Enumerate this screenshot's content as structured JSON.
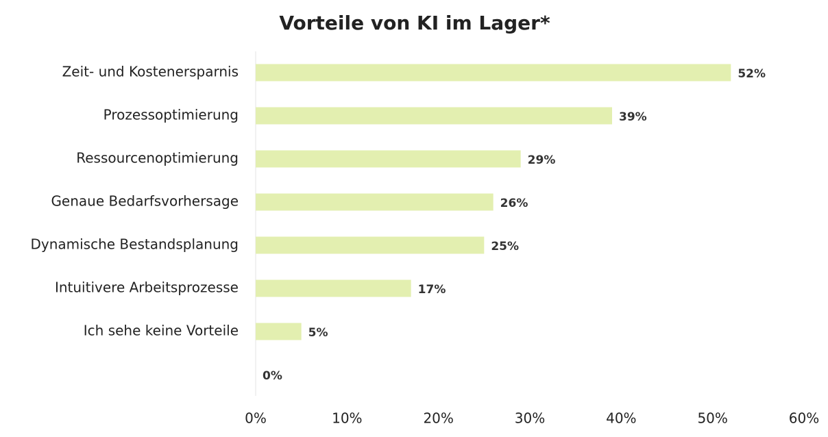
{
  "chart_data": {
    "type": "bar",
    "orientation": "horizontal",
    "title": "Vorteile von KI im Lager*",
    "categories": [
      "Zeit- und Kostenersparnis",
      "Prozessoptimierung",
      "Ressourcenoptimierung",
      "Genaue Bedarfsvorhersage",
      "Dynamische Bestandsplanung",
      "Intuitivere Arbeitsprozesse",
      "Ich sehe keine Vorteile",
      null
    ],
    "values": [
      52,
      39,
      29,
      26,
      25,
      17,
      5,
      0
    ],
    "value_labels": [
      "52%",
      "39%",
      "29%",
      "26%",
      "25%",
      "17%",
      "5%",
      "0%"
    ],
    "color": "#e3efb0",
    "xlim": [
      0,
      60
    ],
    "xticks": [
      {
        "value": 0,
        "label": "0%"
      },
      {
        "value": 10,
        "label": "10%"
      },
      {
        "value": 20,
        "label": "20%"
      },
      {
        "value": 30,
        "label": "30%"
      },
      {
        "value": 40,
        "label": "40%"
      },
      {
        "value": 50,
        "label": "50%"
      },
      {
        "value": 60,
        "label": "60%"
      }
    ],
    "grid": false
  }
}
